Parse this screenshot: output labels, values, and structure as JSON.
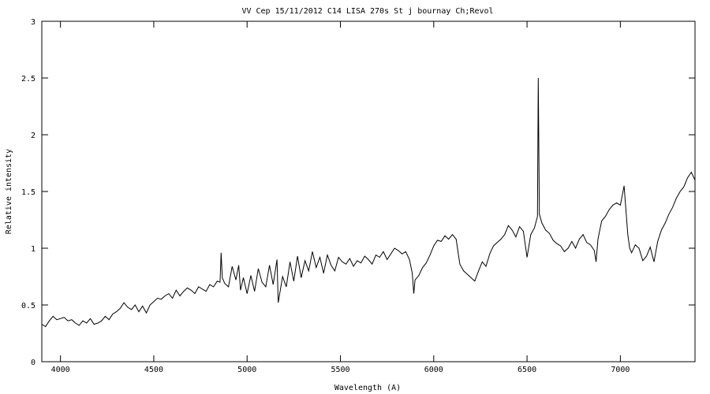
{
  "chart_data": {
    "type": "line",
    "title": "VV Cep 15/11/2012 C14 LISA 270s St j bournay Ch;Revol",
    "xlabel": "Wavelength (A)",
    "ylabel": "Relative intensity",
    "xlim": [
      3900,
      7400
    ],
    "ylim": [
      0,
      3
    ],
    "xticks": [
      4000,
      4500,
      5000,
      5500,
      6000,
      6500,
      7000
    ],
    "yticks": [
      0,
      0.5,
      1,
      1.5,
      2,
      2.5,
      3
    ],
    "xtick_labels": [
      "4000",
      "4500",
      "5000",
      "5500",
      "6000",
      "6500",
      "7000"
    ],
    "ytick_labels": [
      "0",
      "0.5",
      "1",
      "1.5",
      "2",
      "2.5",
      "3"
    ],
    "grid": false,
    "legend": "none",
    "line_color": "#000000",
    "series": [
      {
        "x": [
          3900,
          3920,
          3940,
          3960,
          3980,
          4000,
          4020,
          4040,
          4060,
          4080,
          4100,
          4120,
          4140,
          4160,
          4180,
          4200,
          4220,
          4240,
          4260,
          4280,
          4300,
          4320,
          4340,
          4360,
          4380,
          4400,
          4420,
          4440,
          4460,
          4480,
          4500,
          4520,
          4540,
          4560,
          4580,
          4600,
          4620,
          4640,
          4660,
          4680,
          4700,
          4720,
          4740,
          4760,
          4780,
          4800,
          4820,
          4840,
          4855,
          4861,
          4867,
          4880,
          4900,
          4920,
          4940,
          4955,
          4965,
          4980,
          5000,
          5020,
          5040,
          5060,
          5080,
          5100,
          5120,
          5140,
          5160,
          5167,
          5175,
          5190,
          5210,
          5230,
          5250,
          5270,
          5290,
          5310,
          5330,
          5350,
          5370,
          5390,
          5410,
          5430,
          5450,
          5470,
          5490,
          5510,
          5530,
          5550,
          5570,
          5590,
          5610,
          5630,
          5650,
          5670,
          5690,
          5710,
          5730,
          5750,
          5770,
          5790,
          5810,
          5830,
          5850,
          5870,
          5885,
          5893,
          5900,
          5920,
          5940,
          5960,
          5980,
          6000,
          6020,
          6040,
          6060,
          6080,
          6100,
          6120,
          6140,
          6160,
          6180,
          6200,
          6220,
          6240,
          6260,
          6280,
          6300,
          6320,
          6340,
          6360,
          6380,
          6400,
          6420,
          6440,
          6460,
          6480,
          6500,
          6520,
          6540,
          6556,
          6560,
          6566,
          6580,
          6600,
          6620,
          6640,
          6660,
          6680,
          6700,
          6720,
          6740,
          6760,
          6780,
          6800,
          6820,
          6840,
          6860,
          6870,
          6880,
          6890,
          6900,
          6920,
          6940,
          6960,
          6980,
          7000,
          7020,
          7040,
          7050,
          7060,
          7080,
          7100,
          7120,
          7140,
          7160,
          7180,
          7200,
          7220,
          7240,
          7260,
          7280,
          7300,
          7320,
          7340,
          7360,
          7380,
          7400
        ],
        "y": [
          0.33,
          0.31,
          0.36,
          0.4,
          0.37,
          0.38,
          0.39,
          0.36,
          0.37,
          0.34,
          0.32,
          0.36,
          0.34,
          0.38,
          0.33,
          0.34,
          0.36,
          0.4,
          0.37,
          0.42,
          0.44,
          0.47,
          0.52,
          0.48,
          0.46,
          0.5,
          0.44,
          0.49,
          0.43,
          0.5,
          0.53,
          0.56,
          0.55,
          0.58,
          0.6,
          0.56,
          0.63,
          0.58,
          0.62,
          0.65,
          0.63,
          0.6,
          0.66,
          0.64,
          0.62,
          0.68,
          0.66,
          0.71,
          0.7,
          0.96,
          0.74,
          0.69,
          0.66,
          0.84,
          0.72,
          0.85,
          0.63,
          0.74,
          0.6,
          0.76,
          0.62,
          0.82,
          0.7,
          0.66,
          0.85,
          0.68,
          0.9,
          0.52,
          0.6,
          0.75,
          0.66,
          0.88,
          0.71,
          0.93,
          0.74,
          0.89,
          0.8,
          0.97,
          0.83,
          0.92,
          0.78,
          0.94,
          0.85,
          0.8,
          0.92,
          0.88,
          0.86,
          0.91,
          0.84,
          0.89,
          0.87,
          0.93,
          0.9,
          0.86,
          0.94,
          0.92,
          0.97,
          0.9,
          0.95,
          1.0,
          0.98,
          0.95,
          0.97,
          0.9,
          0.78,
          0.6,
          0.72,
          0.76,
          0.83,
          0.87,
          0.94,
          1.02,
          1.07,
          1.06,
          1.11,
          1.08,
          1.12,
          1.08,
          0.86,
          0.8,
          0.77,
          0.74,
          0.71,
          0.8,
          0.88,
          0.84,
          0.95,
          1.02,
          1.05,
          1.08,
          1.12,
          1.2,
          1.16,
          1.1,
          1.19,
          1.15,
          0.92,
          1.12,
          1.18,
          1.28,
          2.5,
          1.3,
          1.22,
          1.16,
          1.13,
          1.07,
          1.04,
          1.02,
          0.97,
          1.0,
          1.06,
          1.0,
          1.08,
          1.12,
          1.05,
          1.03,
          0.98,
          0.88,
          1.08,
          1.16,
          1.24,
          1.28,
          1.34,
          1.38,
          1.4,
          1.38,
          1.55,
          1.12,
          1.0,
          0.96,
          1.03,
          1.0,
          0.89,
          0.93,
          1.01,
          0.88,
          1.06,
          1.16,
          1.22,
          1.3,
          1.36,
          1.44,
          1.5,
          1.54,
          1.62,
          1.67,
          1.6
        ]
      }
    ]
  }
}
